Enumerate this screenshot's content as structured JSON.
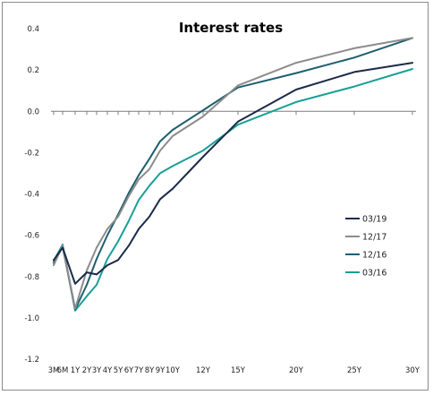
{
  "chart_data": {
    "type": "line",
    "title": "Interest rates",
    "xlabel": "",
    "ylabel": "",
    "ylim": [
      -1.2,
      0.4
    ],
    "yticks": [
      0.4,
      0.2,
      0.0,
      -0.2,
      -0.4,
      -0.6,
      -0.8,
      -1.0,
      -1.2
    ],
    "ytick_labels": [
      "0.4",
      "0.2",
      "0.0",
      "-0.2",
      "-0.4",
      "-0.6",
      "-0.8",
      "-1.0",
      "-1.2"
    ],
    "x": [
      0.25,
      0.5,
      1,
      2,
      3,
      4,
      5,
      6,
      7,
      8,
      9,
      10,
      12,
      15,
      20,
      25,
      30
    ],
    "x_labels": [
      "3M",
      "6M",
      "1Y",
      "2Y",
      "3Y",
      "4Y",
      "5Y",
      "6Y",
      "7Y",
      "8Y",
      "9Y",
      "10Y",
      "12Y",
      "15Y",
      "20Y",
      "25Y",
      "30Y"
    ],
    "legend_position": "right",
    "series": [
      {
        "name": "03/19",
        "color": "#1b2a4a",
        "values": [
          -0.72,
          -0.66,
          -0.835,
          -0.78,
          -0.79,
          -0.745,
          -0.72,
          -0.65,
          -0.57,
          -0.51,
          -0.425,
          -0.375,
          -0.22,
          -0.05,
          0.105,
          0.19,
          0.235
        ]
      },
      {
        "name": "12/17",
        "color": "#8c8c8c",
        "values": [
          -0.745,
          -0.65,
          -0.955,
          -0.77,
          -0.66,
          -0.57,
          -0.51,
          -0.41,
          -0.33,
          -0.28,
          -0.19,
          -0.12,
          -0.025,
          0.125,
          0.235,
          0.305,
          0.355
        ]
      },
      {
        "name": "12/16",
        "color": "#1d5f6f",
        "values": [
          -0.735,
          -0.655,
          -0.96,
          -0.84,
          -0.715,
          -0.6,
          -0.5,
          -0.395,
          -0.31,
          -0.23,
          -0.145,
          -0.09,
          0.005,
          0.115,
          0.185,
          0.26,
          0.355
        ]
      },
      {
        "name": "03/16",
        "color": "#17a096",
        "values": [
          -0.725,
          -0.645,
          -0.965,
          -0.895,
          -0.84,
          -0.715,
          -0.63,
          -0.53,
          -0.43,
          -0.36,
          -0.3,
          -0.265,
          -0.19,
          -0.065,
          0.045,
          0.12,
          0.205
        ]
      }
    ]
  }
}
